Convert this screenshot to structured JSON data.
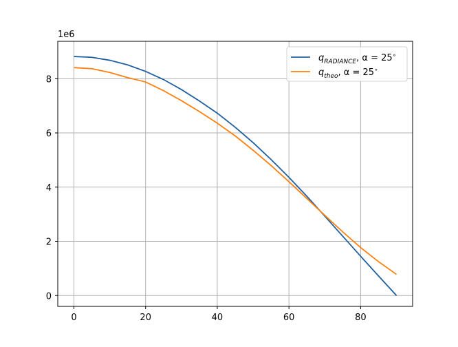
{
  "chart_data": {
    "type": "line",
    "title": "",
    "xlabel": "",
    "ylabel": "",
    "xlim": [
      -4.5,
      94.5
    ],
    "ylim": [
      -400000,
      9380000
    ],
    "grid": true,
    "y_offset_text": "1e6",
    "y_scale": 1000000,
    "x_ticks": [
      0,
      20,
      40,
      60,
      80
    ],
    "y_ticks": [
      0,
      2,
      4,
      6,
      8
    ],
    "x_tick_labels": [
      "0",
      "20",
      "40",
      "60",
      "80"
    ],
    "y_tick_labels": [
      "0",
      "2",
      "4",
      "6",
      "8"
    ],
    "legend_position": "upper-right",
    "series": [
      {
        "name": "q_RADIANCE, α = 25°",
        "legend_main": "q",
        "legend_sub": "RADIANCE",
        "legend_rest": ", α = 25",
        "legend_deg": "∘",
        "color": "#1f5fa0",
        "x": [
          0,
          5,
          10,
          15,
          20,
          25,
          30,
          35,
          40,
          45,
          50,
          55,
          60,
          65,
          70,
          75,
          80,
          85,
          90
        ],
        "y": [
          8820000,
          8790000,
          8680000,
          8510000,
          8270000,
          7970000,
          7600000,
          7180000,
          6730000,
          6210000,
          5640000,
          5020000,
          4360000,
          3660000,
          2930000,
          2190000,
          1450000,
          720000,
          0
        ]
      },
      {
        "name": "q_theo, α = 25°",
        "legend_main": "q",
        "legend_sub": "theo",
        "legend_rest": ", α = 25",
        "legend_deg": "∘",
        "color": "#ff7f0e",
        "x": [
          0,
          5,
          10,
          15,
          20,
          25,
          30,
          35,
          40,
          45,
          50,
          55,
          60,
          65,
          70,
          75,
          80,
          85,
          90
        ],
        "y": [
          8410000,
          8370000,
          8230000,
          8040000,
          7880000,
          7560000,
          7190000,
          6790000,
          6360000,
          5890000,
          5360000,
          4800000,
          4200000,
          3580000,
          2960000,
          2350000,
          1770000,
          1250000,
          780000
        ]
      }
    ]
  }
}
